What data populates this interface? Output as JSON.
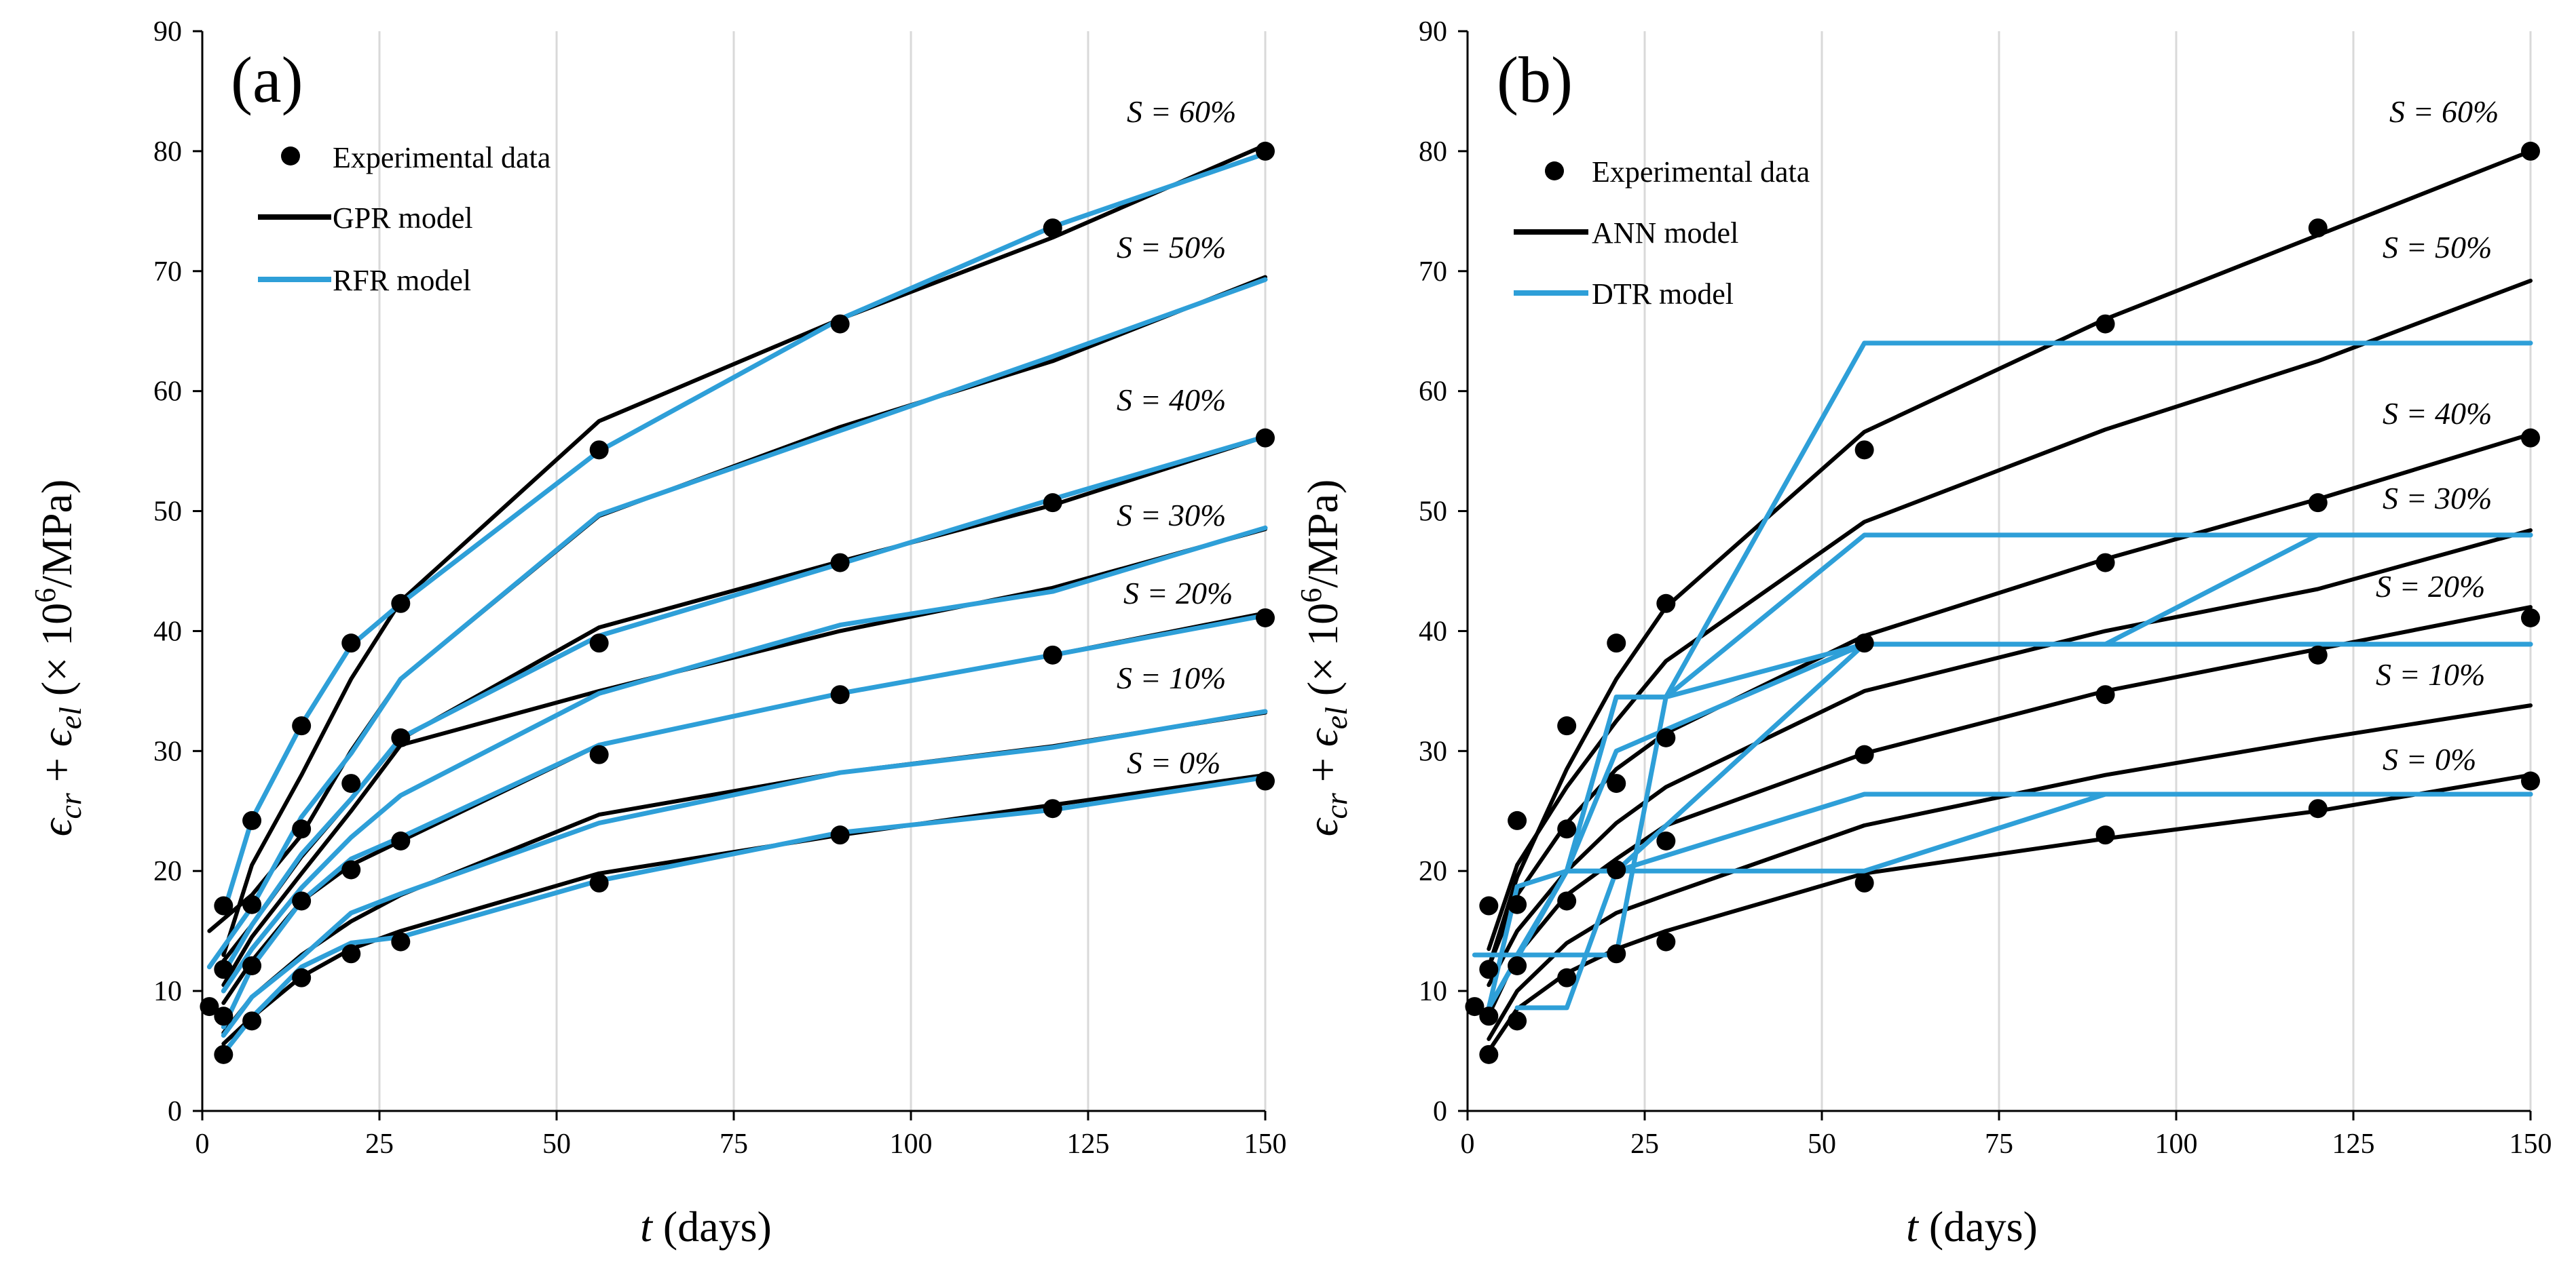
{
  "chart_data": [
    {
      "type": "line",
      "panel_label": "(a)",
      "xlabel_var": "t",
      "xlabel_unit": "(days)",
      "ylabel": "ϵcr + ϵel (× 10^6/MPa)",
      "ylabel_parts": {
        "e": "ϵ",
        "sub1": "cr",
        "plus": " + ",
        "sub2": "el",
        "open": " (× 10",
        "exp": "6",
        "close": "/MPa)"
      },
      "xlim": [
        0,
        150
      ],
      "ylim": [
        0,
        90
      ],
      "xticks": [
        0,
        25,
        50,
        75,
        100,
        125,
        150
      ],
      "yticks": [
        0,
        10,
        20,
        30,
        40,
        50,
        60,
        70,
        80,
        90
      ],
      "grid": "vertical",
      "legend_position": "top-left",
      "legend": [
        "Experimental data",
        "GPR model",
        "RFR model"
      ],
      "curve_labels": [
        "S = 60%",
        "S = 50%",
        "S = 40%",
        "S = 30%",
        "S = 20%",
        "S = 10%",
        "S = 0%"
      ],
      "experimental": [
        {
          "x": 1,
          "y": 8.7
        },
        {
          "x": 3,
          "y": 4.7
        },
        {
          "x": 3,
          "y": 7.9
        },
        {
          "x": 3,
          "y": 11.8
        },
        {
          "x": 3,
          "y": 17.1
        },
        {
          "x": 7,
          "y": 7.5
        },
        {
          "x": 7,
          "y": 12.1
        },
        {
          "x": 7,
          "y": 17.2
        },
        {
          "x": 7,
          "y": 24.2
        },
        {
          "x": 14,
          "y": 11.1
        },
        {
          "x": 14,
          "y": 17.5
        },
        {
          "x": 14,
          "y": 23.5
        },
        {
          "x": 14,
          "y": 32.1
        },
        {
          "x": 21,
          "y": 13.1
        },
        {
          "x": 21,
          "y": 20.1
        },
        {
          "x": 21,
          "y": 27.3
        },
        {
          "x": 21,
          "y": 39.0
        },
        {
          "x": 28,
          "y": 14.1
        },
        {
          "x": 28,
          "y": 22.5
        },
        {
          "x": 28,
          "y": 31.1
        },
        {
          "x": 28,
          "y": 42.3
        },
        {
          "x": 56,
          "y": 19.0
        },
        {
          "x": 56,
          "y": 29.7
        },
        {
          "x": 56,
          "y": 39.0
        },
        {
          "x": 56,
          "y": 55.1
        },
        {
          "x": 90,
          "y": 23.0
        },
        {
          "x": 90,
          "y": 34.7
        },
        {
          "x": 90,
          "y": 45.7
        },
        {
          "x": 90,
          "y": 65.6
        },
        {
          "x": 120,
          "y": 25.2
        },
        {
          "x": 120,
          "y": 38.0
        },
        {
          "x": 120,
          "y": 50.7
        },
        {
          "x": 120,
          "y": 73.6
        },
        {
          "x": 150,
          "y": 27.5
        },
        {
          "x": 150,
          "y": 41.1
        },
        {
          "x": 150,
          "y": 56.1
        },
        {
          "x": 150,
          "y": 80.0
        }
      ],
      "series": [
        {
          "name": "GPR model",
          "color": "#000000",
          "curves": [
            {
              "x": [
                3,
                7,
                14,
                21,
                28,
                56,
                90,
                120,
                150
              ],
              "y": [
                5.6,
                7.8,
                11.2,
                13.5,
                15.0,
                19.8,
                23.0,
                25.5,
                28.0
              ]
            },
            {
              "x": [
                3,
                7,
                14,
                21,
                28,
                56,
                90,
                120,
                150
              ],
              "y": [
                6.5,
                9.5,
                13.0,
                15.8,
                18.0,
                24.7,
                28.2,
                30.4,
                33.2
              ]
            },
            {
              "x": [
                3,
                7,
                14,
                21,
                28,
                56,
                90,
                120,
                150
              ],
              "y": [
                9.0,
                12.5,
                17.5,
                20.5,
                22.5,
                30.5,
                34.8,
                38.0,
                41.5
              ]
            },
            {
              "x": [
                3,
                7,
                14,
                21,
                28,
                56,
                90,
                120,
                150
              ],
              "y": [
                10.5,
                14.5,
                19.8,
                25.0,
                30.5,
                35.0,
                40.0,
                43.6,
                48.5
              ]
            },
            {
              "x": [
                3,
                7,
                14,
                21,
                28,
                56,
                90,
                120,
                150
              ],
              "y": [
                12.5,
                15.5,
                21.2,
                26.0,
                31.0,
                40.3,
                45.8,
                50.5,
                56.2
              ]
            },
            {
              "x": [
                1,
                7,
                14,
                21,
                28,
                56,
                90,
                120,
                150
              ],
              "y": [
                15.0,
                18.0,
                23.0,
                30.0,
                36.0,
                49.6,
                57.0,
                62.5,
                69.5
              ]
            },
            {
              "x": [
                3,
                7,
                14,
                21,
                28,
                56,
                90,
                120,
                150
              ],
              "y": [
                13.0,
                20.5,
                28.0,
                36.0,
                42.5,
                57.5,
                66.0,
                72.8,
                80.5
              ]
            }
          ]
        },
        {
          "name": "RFR model",
          "color": "#2e9fd8",
          "curves": [
            {
              "x": [
                3,
                7,
                14,
                21,
                28,
                56,
                90,
                120,
                150
              ],
              "y": [
                4.8,
                7.8,
                12.0,
                14.0,
                14.5,
                19.2,
                23.2,
                25.1,
                27.8
              ]
            },
            {
              "x": [
                3,
                7,
                14,
                21,
                28,
                56,
                90,
                120,
                150
              ],
              "y": [
                6.3,
                9.5,
                12.8,
                16.5,
                18.1,
                24.0,
                28.2,
                30.3,
                33.3
              ]
            },
            {
              "x": [
                3,
                7,
                14,
                21,
                28,
                56,
                90,
                120,
                150
              ],
              "y": [
                7.0,
                12.0,
                17.5,
                21.0,
                22.8,
                30.5,
                34.8,
                38.0,
                41.3
              ]
            },
            {
              "x": [
                3,
                7,
                14,
                21,
                28,
                56,
                90,
                120,
                150
              ],
              "y": [
                10.0,
                13.5,
                18.6,
                22.8,
                26.3,
                34.8,
                40.5,
                43.3,
                48.6
              ]
            },
            {
              "x": [
                3,
                7,
                14,
                21,
                28,
                56,
                90,
                120,
                150
              ],
              "y": [
                11.5,
                15.5,
                21.4,
                26.0,
                31.1,
                39.6,
                45.6,
                51.0,
                56.2
              ]
            },
            {
              "x": [
                1,
                7,
                14,
                21,
                28,
                56,
                90,
                120,
                150
              ],
              "y": [
                12.0,
                17.0,
                24.5,
                29.8,
                36.0,
                49.7,
                56.7,
                62.9,
                69.3
              ]
            },
            {
              "x": [
                3,
                7,
                14,
                21,
                28,
                56,
                90,
                120,
                150
              ],
              "y": [
                16.5,
                24.3,
                32.2,
                38.8,
                42.3,
                55.0,
                66.0,
                73.7,
                79.8
              ]
            }
          ]
        }
      ]
    },
    {
      "type": "line",
      "panel_label": "(b)",
      "xlabel_var": "t",
      "xlabel_unit": "(days)",
      "ylabel": "ϵcr + ϵel (× 10^6/MPa)",
      "ylabel_parts": {
        "e": "ϵ",
        "sub1": "cr",
        "plus": " + ",
        "sub2": "el",
        "open": " (× 10",
        "exp": "6",
        "close": "/MPa)"
      },
      "xlim": [
        0,
        150
      ],
      "ylim": [
        0,
        90
      ],
      "xticks": [
        0,
        25,
        50,
        75,
        100,
        125,
        150
      ],
      "yticks": [
        0,
        10,
        20,
        30,
        40,
        50,
        60,
        70,
        80,
        90
      ],
      "grid": "vertical",
      "legend_position": "top-left",
      "legend": [
        "Experimental data",
        "ANN model",
        "DTR model"
      ],
      "curve_labels": [
        "S = 60%",
        "S = 50%",
        "S = 40%",
        "S = 30%",
        "S = 20%",
        "S = 10%",
        "S = 0%"
      ],
      "experimental": [
        {
          "x": 1,
          "y": 8.7
        },
        {
          "x": 3,
          "y": 4.7
        },
        {
          "x": 3,
          "y": 7.9
        },
        {
          "x": 3,
          "y": 11.8
        },
        {
          "x": 3,
          "y": 17.1
        },
        {
          "x": 7,
          "y": 7.5
        },
        {
          "x": 7,
          "y": 12.1
        },
        {
          "x": 7,
          "y": 17.2
        },
        {
          "x": 7,
          "y": 24.2
        },
        {
          "x": 14,
          "y": 11.1
        },
        {
          "x": 14,
          "y": 17.5
        },
        {
          "x": 14,
          "y": 23.5
        },
        {
          "x": 14,
          "y": 32.1
        },
        {
          "x": 21,
          "y": 13.1
        },
        {
          "x": 21,
          "y": 20.1
        },
        {
          "x": 21,
          "y": 27.3
        },
        {
          "x": 21,
          "y": 39.0
        },
        {
          "x": 28,
          "y": 14.1
        },
        {
          "x": 28,
          "y": 22.5
        },
        {
          "x": 28,
          "y": 31.1
        },
        {
          "x": 28,
          "y": 42.3
        },
        {
          "x": 56,
          "y": 19.0
        },
        {
          "x": 56,
          "y": 29.7
        },
        {
          "x": 56,
          "y": 39.0
        },
        {
          "x": 56,
          "y": 55.1
        },
        {
          "x": 90,
          "y": 23.0
        },
        {
          "x": 90,
          "y": 34.7
        },
        {
          "x": 90,
          "y": 45.7
        },
        {
          "x": 90,
          "y": 65.6
        },
        {
          "x": 120,
          "y": 25.2
        },
        {
          "x": 120,
          "y": 38.0
        },
        {
          "x": 120,
          "y": 50.7
        },
        {
          "x": 120,
          "y": 73.6
        },
        {
          "x": 150,
          "y": 27.5
        },
        {
          "x": 150,
          "y": 41.1
        },
        {
          "x": 150,
          "y": 56.1
        },
        {
          "x": 150,
          "y": 80.0
        }
      ],
      "series": [
        {
          "name": "ANN model",
          "color": "#000000",
          "curves": [
            {
              "x": [
                3,
                7,
                14,
                21,
                28,
                56,
                90,
                120,
                150
              ],
              "y": [
                5.0,
                8.5,
                11.5,
                13.5,
                15.0,
                19.8,
                22.7,
                25.0,
                28.0
              ]
            },
            {
              "x": [
                3,
                7,
                14,
                21,
                28,
                56,
                90,
                120,
                150
              ],
              "y": [
                6.0,
                10.0,
                14.0,
                16.5,
                18.0,
                23.8,
                28.0,
                31.0,
                33.8
              ]
            },
            {
              "x": [
                3,
                7,
                14,
                21,
                28,
                56,
                90,
                120,
                150
              ],
              "y": [
                8.0,
                13.0,
                18.0,
                21.0,
                23.8,
                29.8,
                35.0,
                38.5,
                42.0
              ]
            },
            {
              "x": [
                3,
                7,
                14,
                21,
                28,
                56,
                90,
                120,
                150
              ],
              "y": [
                10.5,
                15.0,
                20.0,
                24.0,
                27.0,
                35.0,
                40.0,
                43.5,
                48.4
              ]
            },
            {
              "x": [
                3,
                7,
                14,
                21,
                28,
                56,
                90,
                120,
                150
              ],
              "y": [
                12.0,
                18.0,
                24.0,
                28.5,
                31.5,
                39.6,
                46.0,
                51.0,
                56.4
              ]
            },
            {
              "x": [
                3,
                7,
                14,
                21,
                28,
                56,
                90,
                120,
                150
              ],
              "y": [
                13.5,
                20.5,
                27.0,
                32.5,
                37.5,
                49.1,
                56.8,
                62.5,
                69.2
              ]
            },
            {
              "x": [
                3,
                7,
                14,
                21,
                28,
                56,
                90,
                120,
                150
              ],
              "y": [
                12.0,
                19.5,
                28.5,
                36.0,
                42.0,
                56.6,
                66.0,
                73.0,
                80.0
              ]
            }
          ]
        },
        {
          "name": "DTR model",
          "color": "#2e9fd8",
          "curves": [
            {
              "x": [
                3,
                14,
                21,
                28,
                56,
                90,
                150
              ],
              "y": [
                8.6,
                20.0,
                20.0,
                20.0,
                20.0,
                26.4,
                26.4
              ]
            },
            {
              "x": [
                3,
                14,
                21,
                56,
                150
              ],
              "y": [
                8.6,
                20.0,
                20.0,
                26.4,
                26.4
              ]
            },
            {
              "x": [
                7,
                14,
                21,
                56,
                150
              ],
              "y": [
                8.6,
                8.6,
                20.0,
                38.9,
                38.9
              ]
            },
            {
              "x": [
                3,
                7,
                14,
                21,
                56,
                90,
                120,
                150
              ],
              "y": [
                13.0,
                13.0,
                20.0,
                30.0,
                38.9,
                38.9,
                48.0,
                48.0
              ]
            },
            {
              "x": [
                3,
                7,
                14,
                21,
                28,
                56,
                150
              ],
              "y": [
                8.6,
                18.7,
                20.0,
                34.5,
                34.5,
                48.0,
                48.0
              ]
            },
            {
              "x": [
                1,
                7,
                14,
                21,
                28,
                56,
                150
              ],
              "y": [
                13.0,
                13.0,
                13.0,
                13.0,
                34.5,
                38.9,
                38.9
              ]
            },
            {
              "x": [
                3,
                14,
                21,
                28,
                56,
                150
              ],
              "y": [
                8.6,
                20.0,
                34.5,
                34.5,
                64.0,
                64.0
              ]
            }
          ]
        }
      ]
    }
  ]
}
